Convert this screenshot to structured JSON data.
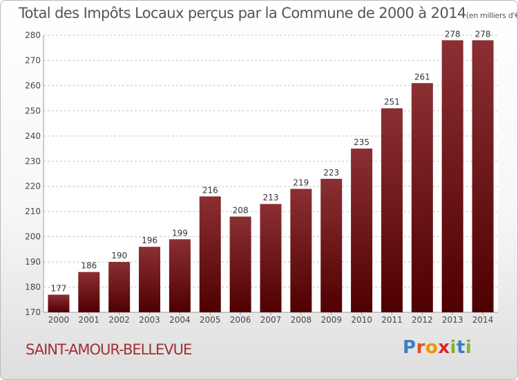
{
  "chart_data": {
    "type": "bar",
    "title": "Total des Impôts Locaux perçus par la Commune de 2000 à 2014",
    "unit_label": "(en milliers d'€)",
    "categories": [
      "2000",
      "2001",
      "2002",
      "2003",
      "2004",
      "2005",
      "2006",
      "2007",
      "2008",
      "2009",
      "2010",
      "2011",
      "2012",
      "2013",
      "2014"
    ],
    "values": [
      177,
      186,
      190,
      196,
      199,
      216,
      208,
      213,
      219,
      223,
      235,
      251,
      261,
      278,
      278
    ],
    "ylim": [
      170,
      280
    ],
    "yticks": [
      170,
      180,
      190,
      200,
      210,
      220,
      230,
      240,
      250,
      260,
      270,
      280
    ],
    "grid": true,
    "bar_color_top": "#8b2f33",
    "bar_color_bottom": "#4f0000"
  },
  "footer": {
    "commune": "SAINT-AMOUR-BELLEVUE",
    "brand": "Proxiti",
    "brand_colors": [
      "#3b7fc4",
      "#e64b1e",
      "#f29400",
      "#d8262b",
      "#7ab829",
      "#3b7fc4",
      "#7ab829"
    ]
  }
}
